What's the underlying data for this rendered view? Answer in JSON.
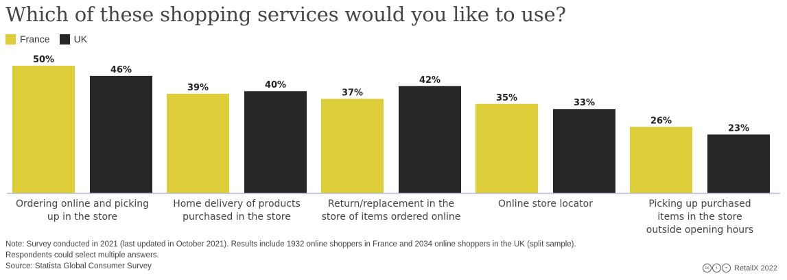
{
  "title": "Which of these shopping services would you like to use?",
  "legend": [
    {
      "name": "France",
      "color": "#dccd39"
    },
    {
      "name": "UK",
      "color": "#272727"
    }
  ],
  "chart_data": {
    "type": "bar",
    "title": "Which of these shopping services would you like to use?",
    "categories": [
      [
        "Ordering online and picking",
        "up in the store"
      ],
      [
        "Home delivery of products",
        "purchased in the store"
      ],
      [
        "Return/replacement in the",
        "store of items ordered online"
      ],
      [
        "Online store locator"
      ],
      [
        "Picking up purchased",
        "items in the store",
        "outside opening hours"
      ]
    ],
    "series": [
      {
        "name": "France",
        "values": [
          50,
          39,
          37,
          35,
          26
        ],
        "color": "#dccd39"
      },
      {
        "name": "UK",
        "values": [
          46,
          40,
          42,
          33,
          23
        ],
        "color": "#272727"
      }
    ],
    "value_suffix": "%",
    "ylim": [
      0,
      50
    ],
    "grid": false,
    "legend_position": "top-left"
  },
  "notes": [
    "Note: Survey conducted in 2021 (last updated in October 2021). Results include 1932 online shoppers in France and 2034 online shoppers in the UK (split sample).",
    "Respondents could select multiple answers.",
    "Source: Statista Global Consumer Survey"
  ],
  "credit": "RetailX 2022"
}
